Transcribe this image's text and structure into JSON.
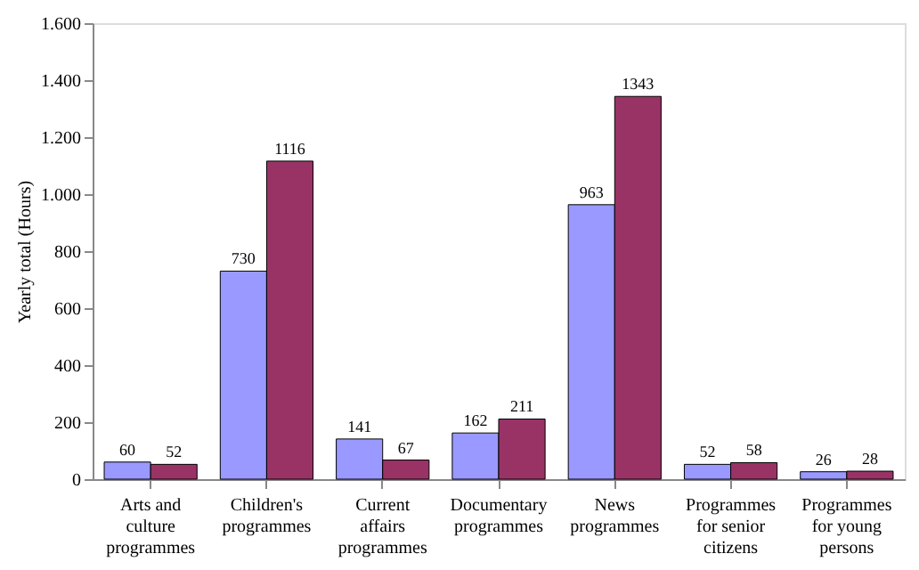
{
  "chart_data": {
    "type": "bar",
    "ylabel": "Yearly total (Hours)",
    "categories": [
      "Arts and culture programmes",
      "Children's programmes",
      "Current affairs programmes",
      "Documentary programmes",
      "News programmes",
      "Programmes for senior citizens",
      "Programmes for young persons"
    ],
    "series": [
      {
        "color": "#9999ff",
        "values": [
          60,
          730,
          141,
          162,
          963,
          52,
          26
        ]
      },
      {
        "color": "#993366",
        "values": [
          52,
          1116,
          67,
          211,
          1343,
          58,
          28
        ]
      }
    ],
    "ylim": [
      0,
      1600
    ],
    "yticks": [
      0,
      200,
      400,
      600,
      800,
      {
        "value": 1000,
        "label": "1.000"
      },
      {
        "value": 1200,
        "label": "1.200"
      },
      {
        "value": 1400,
        "label": "1.400"
      },
      {
        "value": 1600,
        "label": "1.600"
      }
    ],
    "data_labels": true,
    "grid": false,
    "legend": false
  }
}
